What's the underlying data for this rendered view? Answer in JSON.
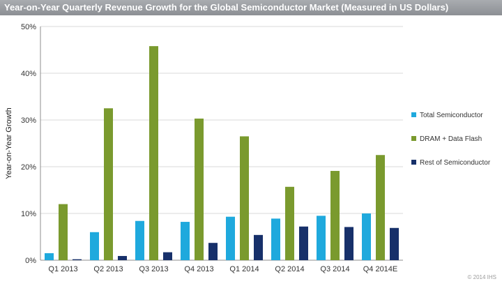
{
  "chart_data": {
    "type": "bar",
    "title": "Year-on-Year Quarterly Revenue Growth for the Global Semiconductor Market (Measured in US Dollars)",
    "ylabel": "Year-on-Year Growth",
    "xlabel": "",
    "categories": [
      "Q1 2013",
      "Q2 2013",
      "Q3 2013",
      "Q4 2013",
      "Q1 2014",
      "Q2 2014",
      "Q3 2014",
      "Q4 2014E"
    ],
    "ylim": [
      0,
      50
    ],
    "yticks": [
      "0%",
      "10%",
      "20%",
      "30%",
      "40%",
      "50%"
    ],
    "ytick_values": [
      0,
      10,
      20,
      30,
      40,
      50
    ],
    "grid": true,
    "legend_position": "right",
    "series": [
      {
        "name": "Total Semiconductor",
        "color": "#1fa9dd",
        "values": [
          1.5,
          6.0,
          8.4,
          8.2,
          9.3,
          8.9,
          9.5,
          10.0
        ]
      },
      {
        "name": "DRAM + Data Flash",
        "color": "#7a9a2e",
        "values": [
          12.0,
          32.5,
          45.8,
          30.3,
          26.5,
          15.7,
          19.1,
          22.5
        ]
      },
      {
        "name": "Rest of Semiconductor",
        "color": "#17306a",
        "values": [
          0.2,
          0.9,
          1.7,
          3.7,
          5.4,
          7.2,
          7.1,
          6.9
        ]
      }
    ]
  },
  "footer": {
    "copyright": "© 2014 IHS"
  }
}
